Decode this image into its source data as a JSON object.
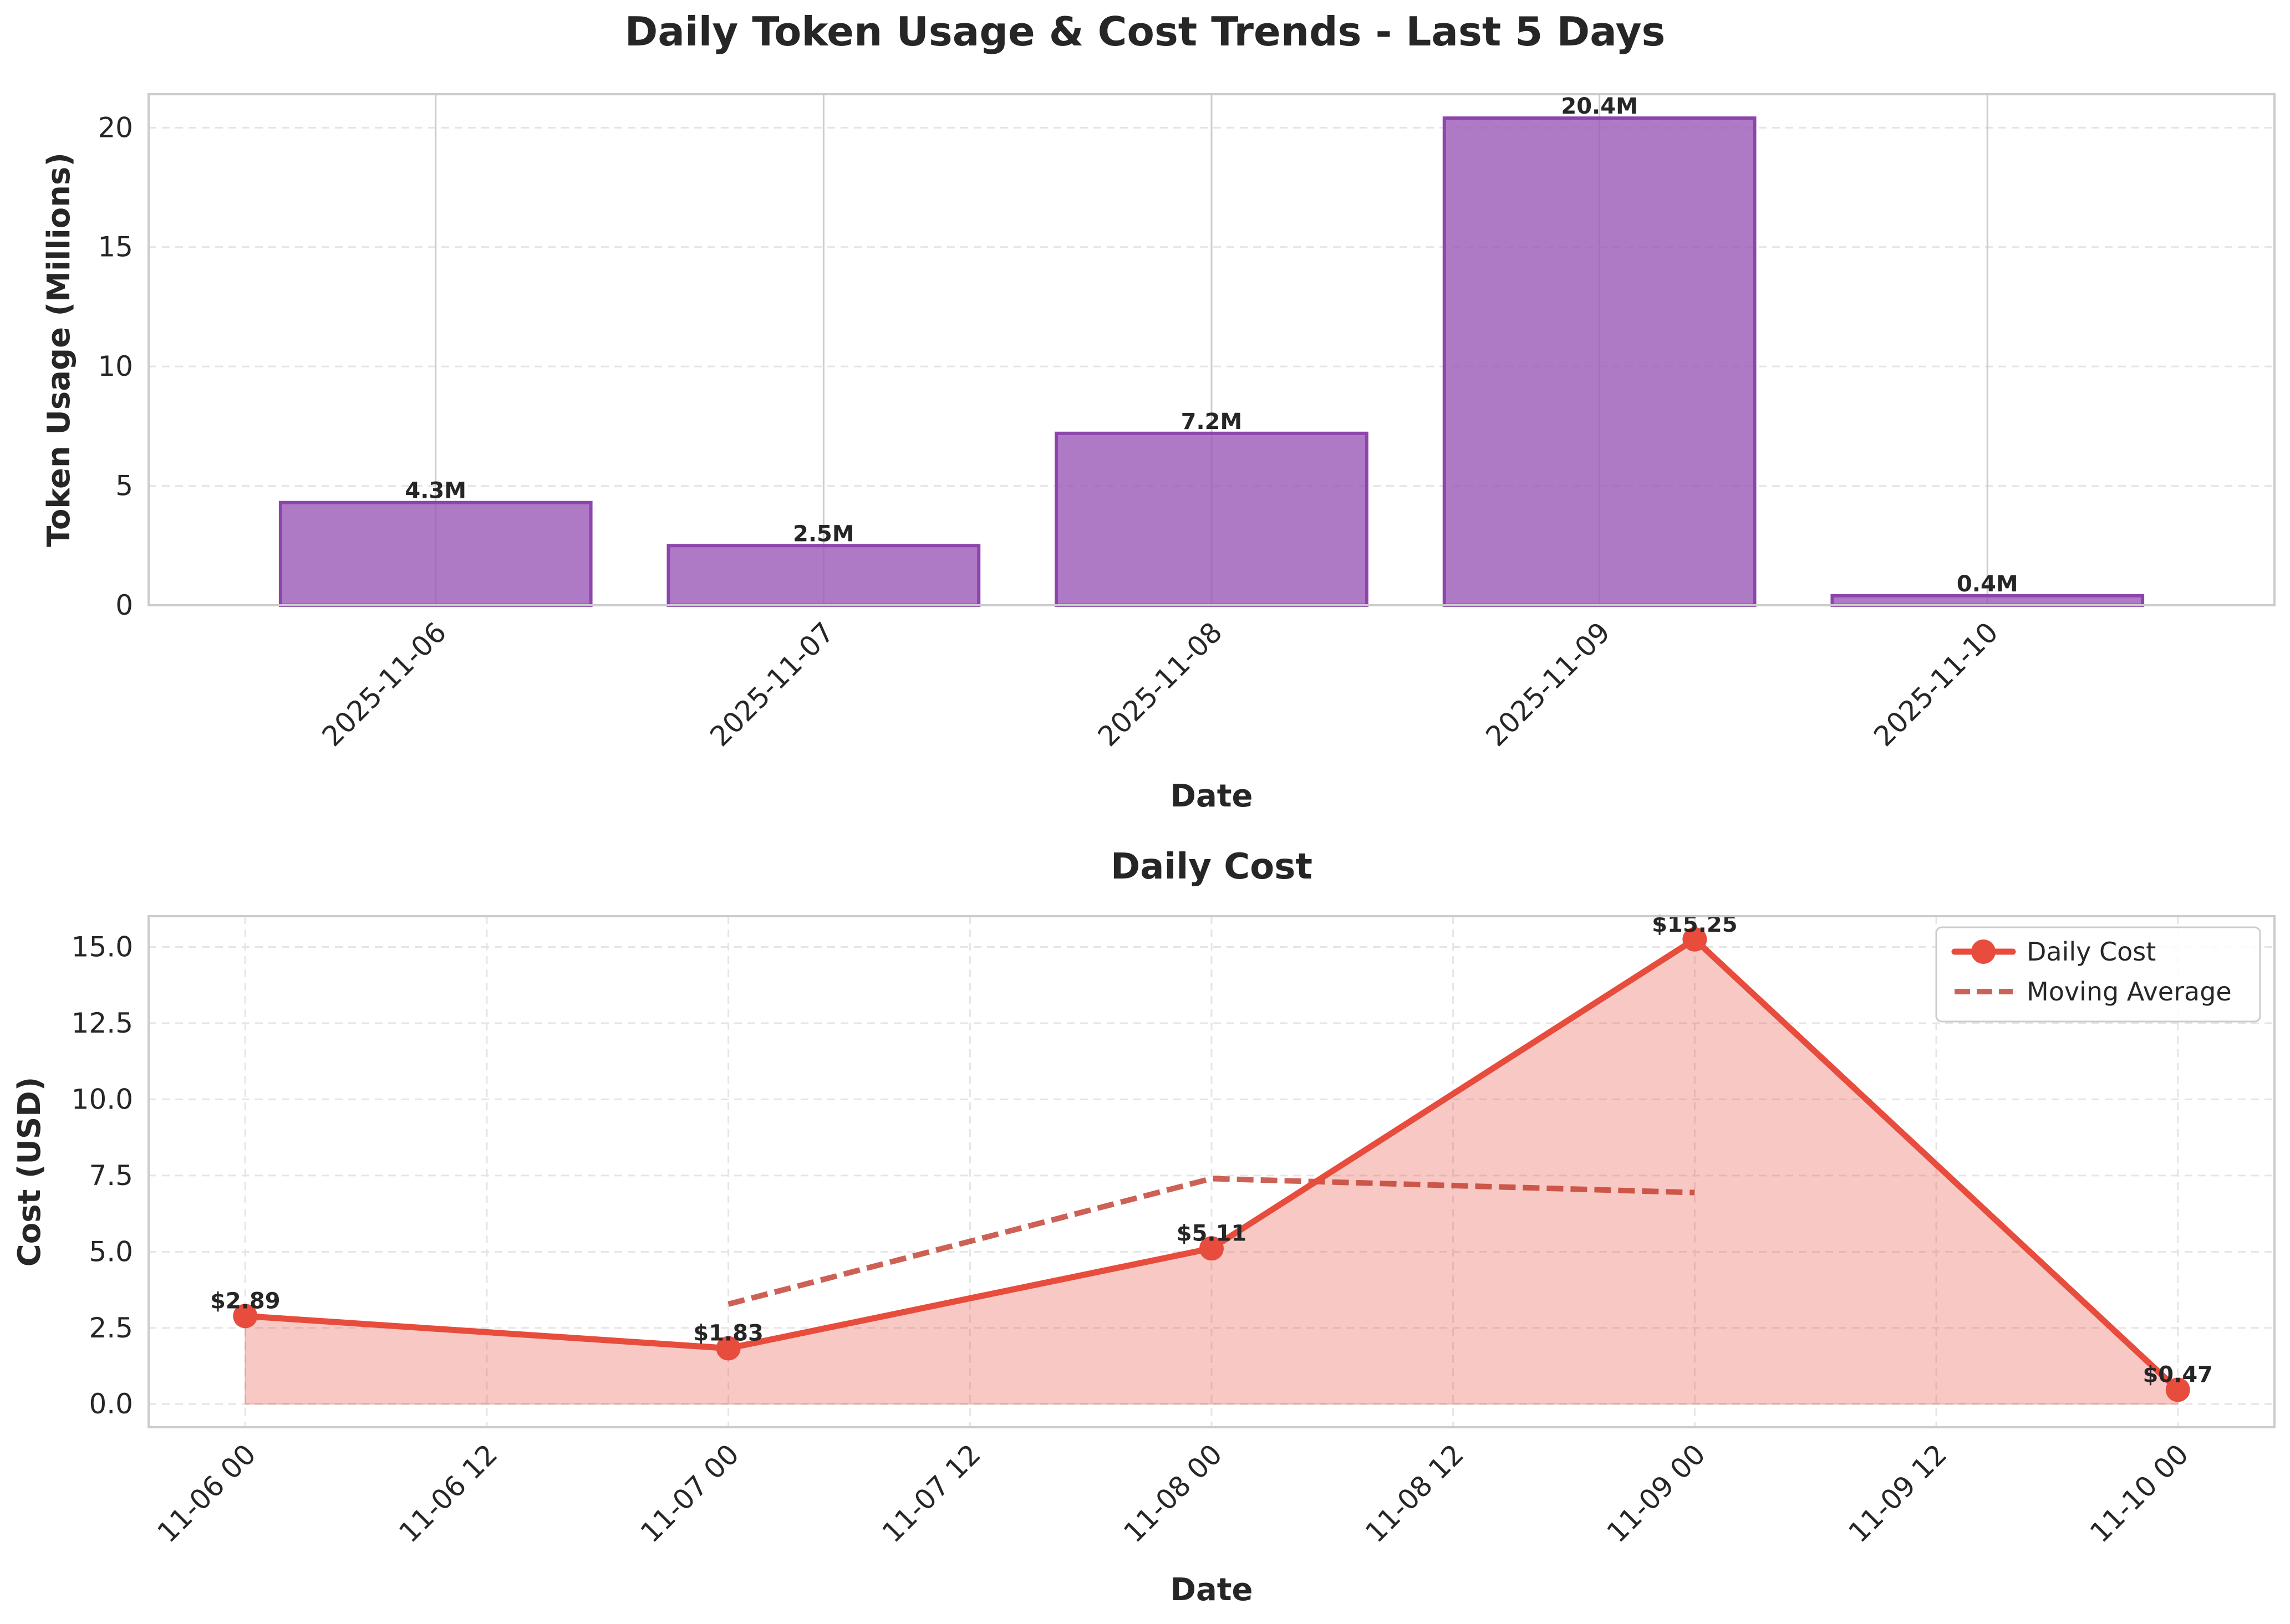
{
  "title": "Daily Token Usage & Cost Trends - Last 5 Days",
  "chart_data": [
    {
      "type": "bar",
      "title": "",
      "xlabel": "Date",
      "ylabel": "Token Usage (Millions)",
      "categories": [
        "2025-11-06",
        "2025-11-07",
        "2025-11-08",
        "2025-11-09",
        "2025-11-10"
      ],
      "values": [
        4.3,
        2.5,
        7.2,
        20.4,
        0.4
      ],
      "data_labels": [
        "4.3M",
        "2.5M",
        "7.2M",
        "20.4M",
        "0.4M"
      ],
      "ylim": [
        0,
        21.4
      ],
      "yticks": [
        0,
        5,
        10,
        15,
        20
      ],
      "grid": true,
      "colors": {
        "bar_fill": "#9b59b6",
        "bar_edge": "#8e44ad"
      }
    },
    {
      "type": "area",
      "title": "Daily Cost",
      "xlabel": "Date",
      "ylabel": "Cost (USD)",
      "x": [
        "2025-11-06 00:00",
        "2025-11-07 00:00",
        "2025-11-08 00:00",
        "2025-11-09 00:00",
        "2025-11-10 00:00"
      ],
      "xticks": [
        "11-06 00",
        "11-06 12",
        "11-07 00",
        "11-07 12",
        "11-08 00",
        "11-08 12",
        "11-09 00",
        "11-09 12",
        "11-10 00"
      ],
      "yticks": [
        "0.0",
        "2.5",
        "5.0",
        "7.5",
        "10.0",
        "12.5",
        "15.0"
      ],
      "ylim": [
        -0.76,
        16.01
      ],
      "grid": true,
      "legend": "top-right",
      "series": [
        {
          "name": "Daily Cost",
          "style": "solid line with circle markers, filled area",
          "color": "#e74c3c",
          "x": [
            "2025-11-06 00:00",
            "2025-11-07 00:00",
            "2025-11-08 00:00",
            "2025-11-09 00:00",
            "2025-11-10 00:00"
          ],
          "values": [
            2.89,
            1.83,
            5.11,
            15.25,
            0.47
          ],
          "data_labels": [
            "$2.89",
            "$1.83",
            "$5.11",
            "$15.25",
            "$0.47"
          ]
        },
        {
          "name": "Moving Average",
          "style": "dashed line",
          "color": "#c0392b",
          "x": [
            "2025-11-07 00:00",
            "2025-11-08 00:00",
            "2025-11-09 00:00"
          ],
          "values": [
            3.28,
            7.4,
            6.94
          ]
        }
      ]
    }
  ]
}
